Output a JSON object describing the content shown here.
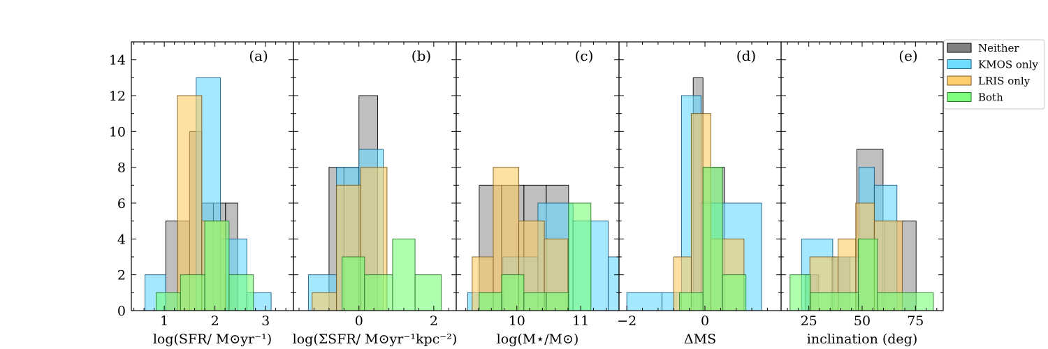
{
  "chart_data": {
    "type": "histogram-panels",
    "y_range": [
      0,
      15
    ],
    "y_ticks": [
      "0",
      "2",
      "4",
      "6",
      "8",
      "10",
      "12",
      "14"
    ],
    "legend": {
      "placement": "top-right, outside",
      "entries": [
        {
          "name": "Neither",
          "color": "#808080"
        },
        {
          "name": "KMOS only",
          "color": "#66d9ff"
        },
        {
          "name": "LRIS only",
          "color": "#ffcc66"
        },
        {
          "name": "Both",
          "color": "#77ff77"
        }
      ]
    },
    "panels": [
      {
        "letter": "(a)",
        "xlabel": "log(SFR/ M⊙yr⁻¹)",
        "xlim": [
          0.35,
          3.55
        ],
        "xticks": [
          {
            "v": 1,
            "label": "1"
          },
          {
            "v": 2,
            "label": "2"
          },
          {
            "v": 3,
            "label": "3"
          }
        ],
        "series": [
          {
            "name": "Neither",
            "bars": [
              [
                1.03,
                1.26,
                5
              ],
              [
                1.26,
                1.5,
                5
              ],
              [
                1.5,
                1.74,
                10
              ],
              [
                1.74,
                1.97,
                6
              ],
              [
                1.97,
                2.21,
                6
              ],
              [
                2.21,
                2.45,
                6
              ]
            ]
          },
          {
            "name": "KMOS only",
            "bars": [
              [
                0.62,
                1.03,
                2
              ],
              [
                1.63,
                2.11,
                13
              ],
              [
                2.11,
                2.63,
                4
              ],
              [
                2.63,
                3.11,
                1
              ]
            ]
          },
          {
            "name": "LRIS only",
            "bars": [
              [
                1.26,
                1.74,
                12
              ],
              [
                1.74,
                2.21,
                5
              ]
            ]
          },
          {
            "name": "Both",
            "bars": [
              [
                0.84,
                1.32,
                1
              ],
              [
                1.32,
                1.8,
                2
              ],
              [
                1.8,
                2.28,
                5
              ],
              [
                2.28,
                2.76,
                2
              ]
            ]
          }
        ]
      },
      {
        "letter": "(b)",
        "xlabel": "log(ΣSFR/ M⊙yr⁻¹kpc⁻²)",
        "xlim": [
          -1.75,
          2.6
        ],
        "xticks": [
          {
            "v": 0,
            "label": "0"
          },
          {
            "v": 2,
            "label": "2"
          }
        ],
        "series": [
          {
            "name": "Neither",
            "bars": [
              [
                -0.8,
                -0.4,
                8
              ],
              [
                -0.4,
                0.0,
                8
              ],
              [
                0.0,
                0.5,
                12
              ]
            ]
          },
          {
            "name": "KMOS only",
            "bars": [
              [
                -1.35,
                -0.6,
                2
              ],
              [
                -0.6,
                0.0,
                8
              ],
              [
                0.0,
                0.65,
                9
              ]
            ]
          },
          {
            "name": "LRIS only",
            "bars": [
              [
                -1.25,
                -0.6,
                1
              ],
              [
                -0.6,
                0.05,
                7
              ],
              [
                0.05,
                0.75,
                8
              ]
            ]
          },
          {
            "name": "Both",
            "bars": [
              [
                -0.45,
                0.15,
                3
              ],
              [
                0.15,
                0.9,
                2
              ],
              [
                0.9,
                1.5,
                4
              ],
              [
                1.5,
                2.2,
                2
              ]
            ]
          }
        ]
      },
      {
        "letter": "(c)",
        "xlabel": "log(M⋆/M⊙)",
        "xlim": [
          9.05,
          11.6
        ],
        "xticks": [
          {
            "v": 10,
            "label": "10"
          },
          {
            "v": 11,
            "label": "11"
          }
        ],
        "series": [
          {
            "name": "Neither",
            "bars": [
              [
                9.41,
                9.76,
                7
              ],
              [
                9.76,
                10.11,
                7
              ],
              [
                10.11,
                10.46,
                7
              ],
              [
                10.46,
                10.81,
                7
              ]
            ]
          },
          {
            "name": "KMOS only",
            "bars": [
              [
                9.23,
                9.78,
                1
              ],
              [
                9.78,
                10.33,
                3
              ],
              [
                10.33,
                10.88,
                6
              ],
              [
                10.88,
                11.43,
                5
              ],
              [
                11.43,
                11.98,
                3
              ]
            ]
          },
          {
            "name": "LRIS only",
            "bars": [
              [
                9.3,
                9.63,
                3
              ],
              [
                9.63,
                10.03,
                8
              ],
              [
                10.03,
                10.43,
                5
              ],
              [
                10.43,
                10.8,
                4
              ]
            ]
          },
          {
            "name": "Both",
            "bars": [
              [
                9.41,
                9.76,
                1
              ],
              [
                9.76,
                10.11,
                2
              ],
              [
                10.11,
                10.46,
                1
              ],
              [
                10.46,
                10.81,
                1
              ],
              [
                10.81,
                11.16,
                6
              ]
            ]
          }
        ]
      },
      {
        "letter": "(d)",
        "xlabel": "ΔMS",
        "xlim": [
          -2.2,
          1.95
        ],
        "xticks": [
          {
            "v": -2,
            "label": "−2"
          },
          {
            "v": 0,
            "label": "0"
          }
        ],
        "series": [
          {
            "name": "Neither",
            "bars": [
              [
                -0.3,
                -0.05,
                13
              ],
              [
                -0.05,
                0.5,
                8
              ]
            ]
          },
          {
            "name": "KMOS only",
            "bars": [
              [
                -2.0,
                -1.1,
                1
              ],
              [
                -1.1,
                -0.6,
                1
              ],
              [
                -0.6,
                -0.1,
                12
              ],
              [
                -0.1,
                1.45,
                6
              ]
            ]
          },
          {
            "name": "LRIS only",
            "bars": [
              [
                -0.8,
                -0.35,
                3
              ],
              [
                -0.35,
                0.15,
                11
              ],
              [
                0.15,
                1.0,
                4
              ]
            ]
          },
          {
            "name": "Both",
            "bars": [
              [
                -0.65,
                -0.05,
                1
              ],
              [
                -0.05,
                0.45,
                8
              ],
              [
                0.45,
                1.05,
                2
              ]
            ]
          }
        ]
      },
      {
        "letter": "(e)",
        "xlabel": "inclination (deg)",
        "xlim": [
          12,
          88
        ],
        "xticks": [
          {
            "v": 25,
            "label": "25"
          },
          {
            "v": 50,
            "label": "50"
          },
          {
            "v": 75,
            "label": "75"
          }
        ],
        "series": [
          {
            "name": "Neither",
            "bars": [
              [
                23.3,
                29.6,
                2
              ],
              [
                35.5,
                44.3,
                3
              ],
              [
                47.5,
                59.8,
                9
              ],
              [
                60.5,
                75.3,
                5
              ]
            ]
          },
          {
            "name": "KMOS only",
            "bars": [
              [
                21.6,
                36.2,
                4
              ],
              [
                36.2,
                48.5,
                3
              ],
              [
                48.5,
                55.7,
                8
              ],
              [
                55.7,
                66.3,
                7
              ]
            ]
          },
          {
            "name": "LRIS only",
            "bars": [
              [
                25.5,
                38.7,
                3
              ],
              [
                38.7,
                47.0,
                4
              ],
              [
                47.0,
                55.7,
                6
              ],
              [
                55.7,
                68.8,
                5
              ]
            ]
          },
          {
            "name": "Both",
            "bars": [
              [
                16.2,
                25.7,
                2
              ],
              [
                25.7,
                48.2,
                1
              ],
              [
                48.2,
                57.2,
                4
              ],
              [
                57.2,
                83.4,
                1
              ]
            ]
          }
        ]
      }
    ]
  }
}
